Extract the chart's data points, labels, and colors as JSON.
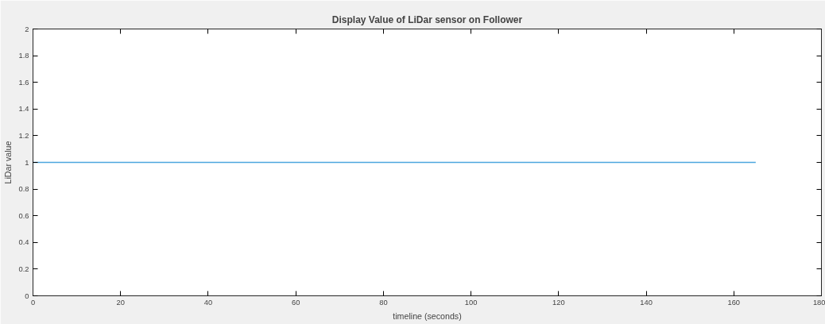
{
  "chart_data": {
    "type": "line",
    "title": "Display Value of LiDar sensor on Follower",
    "xlabel": "timeline (seconds)",
    "ylabel": "LiDar value",
    "x": [
      0,
      165
    ],
    "series": [
      {
        "color": "#4ca6de",
        "values": [
          1,
          1
        ]
      }
    ],
    "xlim": [
      0,
      180
    ],
    "xticks": [
      0,
      20,
      40,
      60,
      80,
      100,
      120,
      140,
      160,
      180
    ],
    "ylim": [
      0,
      2
    ],
    "yticks": [
      0,
      0.2,
      0.4,
      0.6,
      0.8,
      1,
      1.2,
      1.4,
      1.6,
      1.8,
      2
    ],
    "grid": false,
    "marker": "none",
    "line_style": "solid"
  }
}
